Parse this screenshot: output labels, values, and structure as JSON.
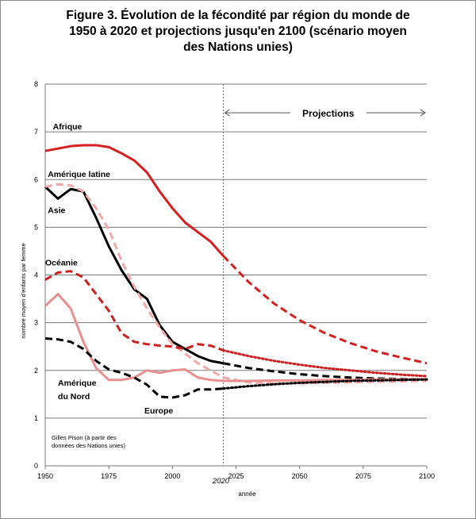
{
  "title_lines": [
    "Figure 3. Évolution de la fécondité par région du monde de",
    "1950 à 2020 et projections jusqu'en 2100 (scénario moyen",
    "des Nations unies)"
  ],
  "chart_data": {
    "type": "line",
    "xlabel": "année",
    "ylabel": "nombre moyen d'enfants par femme",
    "xlim": [
      1950,
      2100
    ],
    "ylim": [
      0,
      8
    ],
    "x_ticks": [
      "1950",
      "1975",
      "2000",
      "2025",
      "2050",
      "2075",
      "2100"
    ],
    "y_ticks": [
      "0",
      "1",
      "2",
      "3",
      "4",
      "5",
      "6",
      "7",
      "8"
    ],
    "grid": "horizontal",
    "divider_year": 2020,
    "divider_label": "2020",
    "projection_label": "Projections",
    "source_note": [
      "Gilles Pison (à partir des",
      "données des Nations unies)"
    ],
    "series": [
      {
        "name": "Afrique",
        "color": "#d42020",
        "style": "solid",
        "x": [
          1950,
          1955,
          1960,
          1965,
          1970,
          1975,
          1980,
          1985,
          1990,
          1995,
          2000,
          2005,
          2010,
          2015,
          2020
        ],
        "y": [
          6.6,
          6.65,
          6.7,
          6.72,
          6.72,
          6.68,
          6.55,
          6.4,
          6.15,
          5.75,
          5.4,
          5.1,
          4.9,
          4.7,
          4.4
        ]
      },
      {
        "name": "Afrique",
        "color": "#d42020",
        "style": "dashed",
        "x": [
          2020,
          2030,
          2040,
          2050,
          2060,
          2070,
          2080,
          2090,
          2100
        ],
        "y": [
          4.4,
          3.85,
          3.4,
          3.05,
          2.78,
          2.57,
          2.4,
          2.27,
          2.15
        ]
      },
      {
        "name": "Asie",
        "color": "#000000",
        "style": "solid",
        "x": [
          1950,
          1955,
          1960,
          1965,
          1970,
          1975,
          1980,
          1985,
          1990,
          1995,
          2000,
          2005,
          2010,
          2015,
          2020
        ],
        "y": [
          5.85,
          5.6,
          5.8,
          5.75,
          5.2,
          4.6,
          4.1,
          3.7,
          3.5,
          2.95,
          2.6,
          2.45,
          2.3,
          2.2,
          2.15
        ]
      },
      {
        "name": "Asie",
        "color": "#000000",
        "style": "dashed",
        "x": [
          2020,
          2030,
          2040,
          2050,
          2060,
          2070,
          2080,
          2090,
          2100
        ],
        "y": [
          2.15,
          2.05,
          1.98,
          1.92,
          1.88,
          1.85,
          1.83,
          1.82,
          1.81
        ]
      },
      {
        "name": "Amérique latine",
        "color": "#f0a8a8",
        "style": "dashed",
        "x": [
          1950,
          1955,
          1960,
          1965,
          1970,
          1975,
          1980,
          1985,
          1990,
          1995,
          2000,
          2005,
          2010,
          2015,
          2020,
          2030,
          2040,
          2050,
          2060,
          2070,
          2080,
          2090,
          2100
        ],
        "y": [
          5.85,
          5.9,
          5.88,
          5.75,
          5.4,
          4.95,
          4.3,
          3.75,
          3.3,
          2.9,
          2.55,
          2.35,
          2.15,
          2.0,
          1.85,
          1.75,
          1.73,
          1.73,
          1.74,
          1.75,
          1.76,
          1.77,
          1.78
        ]
      },
      {
        "name": "Océanie",
        "color": "#cc1f1f",
        "style": "dashed",
        "x": [
          1950,
          1955,
          1960,
          1965,
          1970,
          1975,
          1980,
          1985,
          1990,
          1995,
          2000,
          2005,
          2010,
          2015,
          2020
        ],
        "y": [
          3.9,
          4.05,
          4.08,
          3.95,
          3.6,
          3.25,
          2.78,
          2.6,
          2.55,
          2.52,
          2.5,
          2.45,
          2.55,
          2.52,
          2.42
        ]
      },
      {
        "name": "Océanie",
        "color": "#cc1f1f",
        "style": "dotted",
        "x": [
          2020,
          2030,
          2040,
          2050,
          2060,
          2070,
          2080,
          2090,
          2100
        ],
        "y": [
          2.42,
          2.3,
          2.2,
          2.12,
          2.05,
          2.0,
          1.95,
          1.91,
          1.88
        ]
      },
      {
        "name": "Amérique du Nord",
        "color": "#e89090",
        "style": "solid",
        "x": [
          1950,
          1955,
          1960,
          1965,
          1970,
          1975,
          1980,
          1985,
          1990,
          1995,
          2000,
          2005,
          2010,
          2015,
          2020
        ],
        "y": [
          3.35,
          3.6,
          3.3,
          2.6,
          2.05,
          1.8,
          1.8,
          1.85,
          2.0,
          1.95,
          2.0,
          2.02,
          1.85,
          1.8,
          1.78
        ]
      },
      {
        "name": "Amérique du Nord",
        "color": "#e89090",
        "style": "solid",
        "x": [
          2020,
          2030,
          2040,
          2050,
          2060,
          2070,
          2080,
          2090,
          2100
        ],
        "y": [
          1.78,
          1.78,
          1.79,
          1.79,
          1.8,
          1.8,
          1.81,
          1.81,
          1.82
        ]
      },
      {
        "name": "Europe",
        "color": "#000000",
        "style": "dashed",
        "x": [
          1950,
          1955,
          1960,
          1965,
          1970,
          1975,
          1980,
          1985,
          1990,
          1995,
          2000,
          2005,
          2010,
          2015,
          2020
        ],
        "y": [
          2.67,
          2.65,
          2.6,
          2.45,
          2.2,
          2.02,
          1.95,
          1.85,
          1.7,
          1.45,
          1.43,
          1.48,
          1.6,
          1.6,
          1.62
        ]
      },
      {
        "name": "Europe",
        "color": "#000000",
        "style": "dotted",
        "x": [
          2020,
          2030,
          2040,
          2050,
          2060,
          2070,
          2080,
          2090,
          2100
        ],
        "y": [
          1.62,
          1.67,
          1.71,
          1.74,
          1.76,
          1.78,
          1.79,
          1.8,
          1.81
        ]
      }
    ],
    "labels": [
      {
        "text": "Afrique",
        "x": 1953,
        "y": 7.05
      },
      {
        "text": "Amérique latine",
        "x": 1951,
        "y": 6.05
      },
      {
        "text": "Asie",
        "x": 1951,
        "y": 5.3
      },
      {
        "text": "Océanie",
        "x": 1950,
        "y": 4.2
      },
      {
        "text": "Amérique",
        "x": 1955,
        "y": 1.68
      },
      {
        "text": "du Nord",
        "x": 1955,
        "y": 1.4
      },
      {
        "text": "Europe",
        "x": 1989,
        "y": 1.1
      }
    ]
  }
}
